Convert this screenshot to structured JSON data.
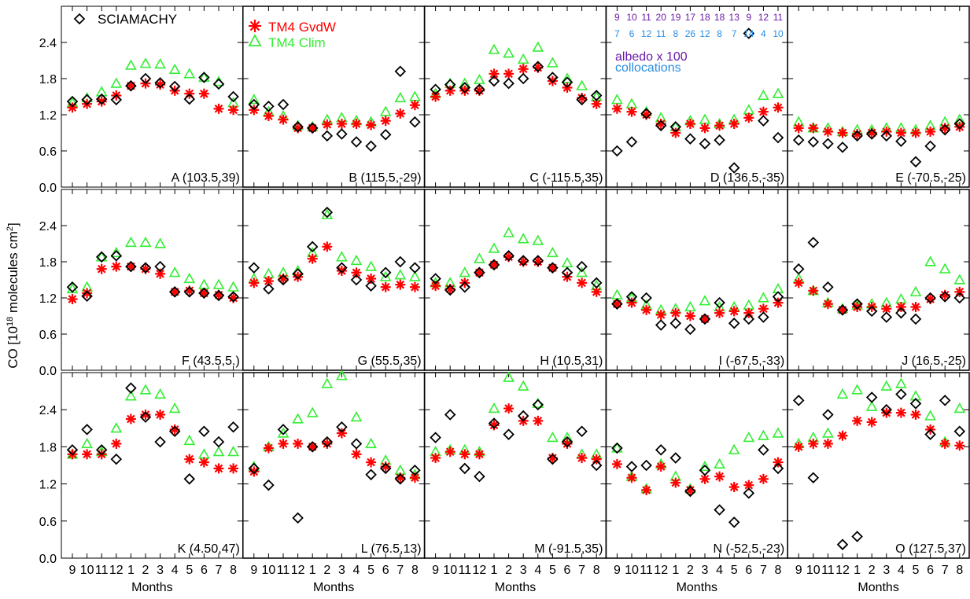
{
  "figure": {
    "ylabel": "CO [10",
    "ylabel_sup": "18",
    "ylabel_tail": " molecules cm",
    "ylabel_sup2": "2",
    "ylabel_end": "]",
    "xlabel": "Months",
    "month_ticks": [
      "9",
      "10",
      "11",
      "12",
      "1",
      "2",
      "3",
      "4",
      "5",
      "6",
      "7",
      "8"
    ],
    "yticks_row": [
      "0.0",
      "0.6",
      "1.2",
      "1.8",
      "2.4"
    ],
    "legend": {
      "sciamachy": "SCIAMACHY",
      "tm4_gvdw": "TM4 GvdW",
      "tm4_clim": "TM4 Clim",
      "albedo_label": "albedo x 100",
      "collocations_label": "collocations",
      "albedo_values": [
        "9",
        "10",
        "11",
        "20",
        "19",
        "17",
        "18",
        "18",
        "13",
        "9",
        "12",
        "11"
      ],
      "collocation_values": [
        "7",
        "6",
        "12",
        "11",
        "8",
        "26",
        "12",
        "8",
        "7",
        "14",
        "4",
        "10"
      ]
    },
    "colors": {
      "sciamachy": "#000000",
      "tm4_gvdw": "#ff0000",
      "tm4_clim": "#33ee33",
      "error_gray": "#aaaaaa",
      "albedo": "#6a1aa8",
      "collocations": "#2a8de0"
    }
  },
  "chart_data": [
    {
      "type": "scatter",
      "label": "A (103.5,39)",
      "x": [
        "9",
        "10",
        "11",
        "12",
        "1",
        "2",
        "3",
        "4",
        "5",
        "6",
        "7",
        "8"
      ],
      "ylim": [
        0,
        3
      ],
      "series": [
        {
          "name": "SCIAMACHY",
          "values": [
            1.42,
            1.45,
            1.46,
            1.45,
            1.68,
            1.8,
            1.73,
            1.67,
            1.46,
            1.82,
            1.71,
            1.5
          ]
        },
        {
          "name": "TM4 GvdW",
          "values": [
            1.32,
            1.38,
            1.42,
            1.52,
            1.68,
            1.72,
            1.7,
            1.6,
            1.55,
            1.55,
            1.3,
            1.28
          ]
        },
        {
          "name": "TM4 Clim",
          "values": [
            1.4,
            1.48,
            1.58,
            1.72,
            2.02,
            2.05,
            2.04,
            1.95,
            1.88,
            1.82,
            1.75,
            1.4
          ]
        }
      ]
    },
    {
      "type": "scatter",
      "label": "B (115.5,-29)",
      "x": [
        "9",
        "10",
        "11",
        "12",
        "1",
        "2",
        "3",
        "4",
        "5",
        "6",
        "7",
        "8"
      ],
      "ylim": [
        0,
        3
      ],
      "series": [
        {
          "name": "SCIAMACHY",
          "values": [
            1.37,
            1.34,
            1.37,
            1.0,
            0.98,
            0.85,
            0.88,
            0.75,
            0.68,
            0.87,
            1.92,
            1.08
          ]
        },
        {
          "name": "TM4 GvdW",
          "values": [
            1.28,
            1.18,
            1.12,
            0.98,
            0.98,
            1.04,
            1.05,
            1.05,
            1.03,
            1.1,
            1.22,
            1.36
          ]
        },
        {
          "name": "TM4 Clim",
          "values": [
            1.45,
            1.25,
            1.18,
            1.02,
            1.0,
            1.12,
            1.15,
            1.1,
            1.08,
            1.25,
            1.48,
            1.5
          ]
        }
      ]
    },
    {
      "type": "scatter",
      "label": "C (-115.5,35)",
      "x": [
        "9",
        "10",
        "11",
        "12",
        "1",
        "2",
        "3",
        "4",
        "5",
        "6",
        "7",
        "8"
      ],
      "ylim": [
        0,
        3
      ],
      "series": [
        {
          "name": "SCIAMACHY",
          "values": [
            1.62,
            1.7,
            1.65,
            1.62,
            1.76,
            1.72,
            1.8,
            2.0,
            1.82,
            1.74,
            1.45,
            1.52
          ]
        },
        {
          "name": "TM4 GvdW",
          "values": [
            1.5,
            1.6,
            1.6,
            1.6,
            1.88,
            1.88,
            1.96,
            1.98,
            1.76,
            1.65,
            1.48,
            1.38
          ]
        },
        {
          "name": "TM4 Clim",
          "values": [
            1.55,
            1.72,
            1.72,
            1.78,
            2.28,
            2.22,
            2.12,
            2.32,
            2.06,
            1.8,
            1.68,
            1.5
          ]
        }
      ]
    },
    {
      "type": "scatter",
      "label": "D (136.5,-35)",
      "x": [
        "9",
        "10",
        "11",
        "12",
        "1",
        "2",
        "3",
        "4",
        "5",
        "6",
        "7",
        "8"
      ],
      "ylim": [
        0,
        3
      ],
      "series": [
        {
          "name": "SCIAMACHY",
          "values": [
            0.6,
            0.75,
            1.22,
            1.02,
            1.0,
            0.8,
            0.72,
            0.78,
            0.32,
            2.55,
            1.1,
            0.82
          ]
        },
        {
          "name": "TM4 GvdW",
          "values": [
            1.3,
            1.25,
            1.2,
            1.05,
            0.9,
            1.05,
            0.98,
            1.02,
            1.05,
            1.15,
            1.25,
            1.32
          ]
        },
        {
          "name": "TM4 Clim",
          "values": [
            1.45,
            1.38,
            1.25,
            1.15,
            1.0,
            1.1,
            1.12,
            1.05,
            1.12,
            1.28,
            1.52,
            1.55
          ]
        }
      ]
    },
    {
      "type": "scatter",
      "label": "E (-70.5,-25)",
      "x": [
        "9",
        "10",
        "11",
        "12",
        "1",
        "2",
        "3",
        "4",
        "5",
        "6",
        "7",
        "8"
      ],
      "ylim": [
        0,
        3
      ],
      "series": [
        {
          "name": "SCIAMACHY",
          "values": [
            0.78,
            0.75,
            0.72,
            0.66,
            0.85,
            0.88,
            0.85,
            0.76,
            0.42,
            0.68,
            0.95,
            1.05
          ]
        },
        {
          "name": "TM4 GvdW",
          "values": [
            0.98,
            0.98,
            0.92,
            0.9,
            0.88,
            0.9,
            0.92,
            0.9,
            0.9,
            0.92,
            0.98,
            1.0
          ]
        },
        {
          "name": "TM4 Clim",
          "values": [
            1.08,
            0.98,
            0.98,
            0.92,
            0.95,
            0.95,
            0.98,
            0.98,
            0.95,
            1.02,
            1.08,
            1.12
          ]
        }
      ]
    },
    {
      "type": "scatter",
      "label": "F (43.5,5.)",
      "x": [
        "9",
        "10",
        "11",
        "12",
        "1",
        "2",
        "3",
        "4",
        "5",
        "6",
        "7",
        "8"
      ],
      "ylim": [
        0,
        3
      ],
      "series": [
        {
          "name": "SCIAMACHY",
          "values": [
            1.38,
            1.23,
            1.88,
            1.9,
            1.72,
            1.7,
            1.72,
            1.3,
            1.3,
            1.28,
            1.24,
            1.22
          ]
        },
        {
          "name": "TM4 GvdW",
          "values": [
            1.18,
            1.28,
            1.68,
            1.72,
            1.72,
            1.68,
            1.6,
            1.3,
            1.32,
            1.28,
            1.25,
            1.2
          ]
        },
        {
          "name": "TM4 Clim",
          "values": [
            1.35,
            1.38,
            1.88,
            1.95,
            2.12,
            2.12,
            2.1,
            1.62,
            1.52,
            1.42,
            1.42,
            1.38
          ]
        }
      ]
    },
    {
      "type": "scatter",
      "label": "G (55.5,35)",
      "x": [
        "9",
        "10",
        "11",
        "12",
        "1",
        "2",
        "3",
        "4",
        "5",
        "6",
        "7",
        "8"
      ],
      "ylim": [
        0,
        3
      ],
      "series": [
        {
          "name": "SCIAMACHY",
          "values": [
            1.7,
            1.35,
            1.5,
            1.6,
            2.05,
            2.62,
            1.7,
            1.5,
            1.4,
            1.62,
            1.8,
            1.7
          ]
        },
        {
          "name": "TM4 GvdW",
          "values": [
            1.45,
            1.48,
            1.52,
            1.55,
            1.85,
            2.05,
            1.65,
            1.62,
            1.52,
            1.38,
            1.42,
            1.38
          ]
        },
        {
          "name": "TM4 Clim",
          "values": [
            1.52,
            1.6,
            1.62,
            1.65,
            1.95,
            2.58,
            1.88,
            1.82,
            1.72,
            1.55,
            1.58,
            1.55
          ]
        }
      ]
    },
    {
      "type": "scatter",
      "label": "H (10.5,31)",
      "x": [
        "9",
        "10",
        "11",
        "12",
        "1",
        "2",
        "3",
        "4",
        "5",
        "6",
        "7",
        "8"
      ],
      "ylim": [
        0,
        3
      ],
      "series": [
        {
          "name": "SCIAMACHY",
          "values": [
            1.52,
            1.33,
            1.38,
            1.62,
            1.75,
            1.9,
            1.82,
            1.82,
            1.7,
            1.62,
            1.72,
            1.45
          ]
        },
        {
          "name": "TM4 GvdW",
          "values": [
            1.4,
            1.35,
            1.45,
            1.62,
            1.75,
            1.88,
            1.8,
            1.8,
            1.7,
            1.55,
            1.45,
            1.3
          ]
        },
        {
          "name": "TM4 Clim",
          "values": [
            1.45,
            1.45,
            1.62,
            1.85,
            2.02,
            2.28,
            2.18,
            2.15,
            1.95,
            1.78,
            1.62,
            1.4
          ]
        }
      ]
    },
    {
      "type": "scatter",
      "label": "I (-67.5,-33)",
      "x": [
        "9",
        "10",
        "11",
        "12",
        "1",
        "2",
        "3",
        "4",
        "5",
        "6",
        "7",
        "8"
      ],
      "ylim": [
        0,
        3
      ],
      "series": [
        {
          "name": "SCIAMACHY",
          "values": [
            1.1,
            1.22,
            1.2,
            0.75,
            0.78,
            0.68,
            0.85,
            1.12,
            0.78,
            0.85,
            0.88,
            1.22
          ]
        },
        {
          "name": "TM4 GvdW",
          "values": [
            1.1,
            1.12,
            1.0,
            0.92,
            0.95,
            0.9,
            0.85,
            0.95,
            0.98,
            0.95,
            1.02,
            1.12
          ]
        },
        {
          "name": "TM4 Clim",
          "values": [
            1.25,
            1.2,
            1.08,
            1.0,
            1.02,
            1.05,
            1.15,
            1.05,
            1.05,
            1.08,
            1.2,
            1.35
          ]
        }
      ]
    },
    {
      "type": "scatter",
      "label": "J (16.5,-25)",
      "x": [
        "9",
        "10",
        "11",
        "12",
        "1",
        "2",
        "3",
        "4",
        "5",
        "6",
        "7",
        "8"
      ],
      "ylim": [
        0,
        3
      ],
      "series": [
        {
          "name": "SCIAMACHY",
          "values": [
            1.68,
            2.12,
            1.38,
            1.0,
            1.1,
            0.98,
            0.88,
            0.95,
            0.85,
            1.2,
            1.22,
            1.2
          ]
        },
        {
          "name": "TM4 GvdW",
          "values": [
            1.45,
            1.32,
            1.1,
            1.0,
            1.05,
            1.05,
            1.02,
            1.05,
            1.05,
            1.18,
            1.25,
            1.3
          ]
        },
        {
          "name": "TM4 Clim",
          "values": [
            1.52,
            1.32,
            1.12,
            1.02,
            1.08,
            1.1,
            1.12,
            1.18,
            1.3,
            1.8,
            1.68,
            1.5
          ]
        }
      ]
    },
    {
      "type": "scatter",
      "label": "K (4.50,47)",
      "x": [
        "9",
        "10",
        "11",
        "12",
        "1",
        "2",
        "3",
        "4",
        "5",
        "6",
        "7",
        "8"
      ],
      "ylim": [
        0,
        3
      ],
      "series": [
        {
          "name": "SCIAMACHY",
          "values": [
            1.75,
            2.08,
            1.75,
            1.6,
            2.75,
            2.28,
            1.88,
            2.05,
            1.28,
            2.05,
            1.88,
            2.12
          ]
        },
        {
          "name": "TM4 GvdW",
          "values": [
            1.68,
            1.68,
            1.68,
            1.85,
            2.25,
            2.32,
            2.32,
            2.08,
            1.6,
            1.55,
            1.45,
            1.45
          ]
        },
        {
          "name": "TM4 Clim",
          "values": [
            1.68,
            1.85,
            1.72,
            2.1,
            2.62,
            2.72,
            2.65,
            2.42,
            1.9,
            1.68,
            1.72,
            1.72
          ]
        }
      ]
    },
    {
      "type": "scatter",
      "label": "L (76.5,13)",
      "x": [
        "9",
        "10",
        "11",
        "12",
        "1",
        "2",
        "3",
        "4",
        "5",
        "6",
        "7",
        "8"
      ],
      "ylim": [
        0,
        3
      ],
      "series": [
        {
          "name": "SCIAMACHY",
          "values": [
            1.45,
            1.18,
            2.08,
            0.65,
            1.8,
            1.88,
            2.12,
            1.85,
            1.35,
            1.45,
            1.28,
            1.42
          ]
        },
        {
          "name": "TM4 GvdW",
          "values": [
            1.4,
            1.78,
            1.85,
            1.85,
            1.8,
            1.85,
            2.02,
            1.68,
            1.55,
            1.48,
            1.3,
            1.3
          ]
        },
        {
          "name": "TM4 Clim",
          "values": [
            1.48,
            1.8,
            2.02,
            2.25,
            2.35,
            2.82,
            2.95,
            2.28,
            1.85,
            1.58,
            1.42,
            1.35
          ]
        }
      ]
    },
    {
      "type": "scatter",
      "label": "M (-91.5,35)",
      "x": [
        "9",
        "10",
        "11",
        "12",
        "1",
        "2",
        "3",
        "4",
        "5",
        "6",
        "7",
        "8"
      ],
      "ylim": [
        0,
        3
      ],
      "series": [
        {
          "name": "SCIAMACHY",
          "values": [
            1.95,
            2.32,
            1.45,
            1.32,
            2.18,
            2.0,
            2.3,
            2.48,
            1.6,
            1.88,
            2.05,
            1.5
          ]
        },
        {
          "name": "TM4 GvdW",
          "values": [
            1.62,
            1.72,
            1.68,
            1.68,
            2.15,
            2.42,
            2.22,
            2.22,
            1.62,
            1.85,
            1.62,
            1.6
          ]
        },
        {
          "name": "TM4 Clim",
          "values": [
            1.72,
            1.75,
            1.75,
            1.72,
            2.42,
            2.92,
            2.78,
            2.5,
            1.95,
            1.95,
            1.68,
            1.68
          ]
        }
      ]
    },
    {
      "type": "scatter",
      "label": "N (-52.5,-23)",
      "x": [
        "9",
        "10",
        "11",
        "12",
        "1",
        "2",
        "3",
        "4",
        "5",
        "6",
        "7",
        "8"
      ],
      "ylim": [
        0,
        3
      ],
      "series": [
        {
          "name": "SCIAMACHY",
          "values": [
            1.78,
            1.48,
            1.5,
            1.75,
            1.62,
            1.08,
            1.42,
            0.78,
            0.58,
            1.05,
            1.75,
            1.45
          ]
        },
        {
          "name": "TM4 GvdW",
          "values": [
            1.52,
            1.3,
            1.1,
            1.48,
            1.22,
            1.1,
            1.28,
            1.32,
            1.15,
            1.18,
            1.28,
            1.55
          ]
        },
        {
          "name": "TM4 Clim",
          "values": [
            1.78,
            1.32,
            1.12,
            1.52,
            1.32,
            1.12,
            1.48,
            1.52,
            1.75,
            1.95,
            1.98,
            2.02
          ]
        }
      ]
    },
    {
      "type": "scatter",
      "label": "O (127.5,37)",
      "x": [
        "9",
        "10",
        "11",
        "12",
        "1",
        "2",
        "3",
        "4",
        "5",
        "6",
        "7",
        "8"
      ],
      "ylim": [
        0,
        3
      ],
      "series": [
        {
          "name": "SCIAMACHY",
          "values": [
            2.55,
            1.3,
            2.32,
            0.22,
            0.35,
            2.6,
            2.4,
            2.65,
            2.5,
            2.0,
            2.55,
            2.05
          ]
        },
        {
          "name": "TM4 GvdW",
          "values": [
            1.8,
            1.85,
            1.85,
            1.98,
            2.22,
            2.2,
            2.35,
            2.35,
            2.32,
            2.08,
            1.85,
            1.82
          ]
        },
        {
          "name": "TM4 Clim",
          "values": [
            1.85,
            1.95,
            2.02,
            2.65,
            2.72,
            2.45,
            2.78,
            2.82,
            2.62,
            2.3,
            1.88,
            2.42
          ]
        }
      ]
    }
  ]
}
